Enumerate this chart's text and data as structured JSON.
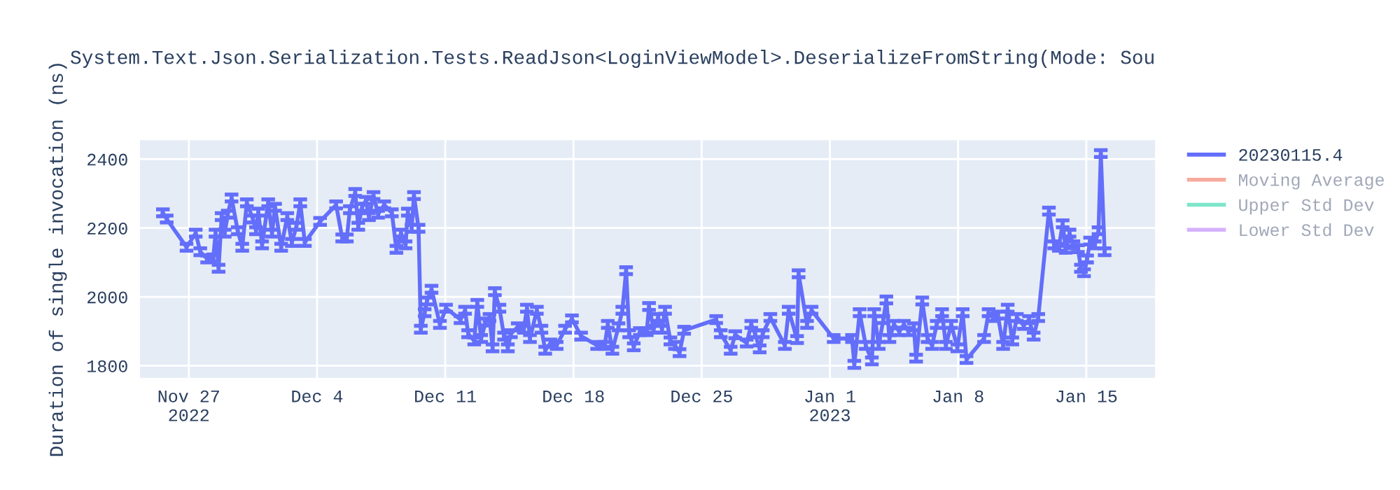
{
  "chart_data": {
    "type": "line",
    "title": "System.Text.Json.Serialization.Tests.ReadJson<LoginViewModel>.DeserializeFromString(Mode: Sou",
    "ylabel": "Duration of single invocation (ns)",
    "x": [
      "2022-11-25T14:00",
      "2022-11-25T19:00",
      "2022-11-26T21:00",
      "2022-11-27T09:00",
      "2022-11-27T15:00",
      "2022-11-28T00:00",
      "2022-11-28T08:00",
      "2022-11-28T11:00",
      "2022-11-28T15:00",
      "2022-11-28T19:00",
      "2022-11-28T23:00",
      "2022-11-29T03:00",
      "2022-11-29T08:00",
      "2022-11-29T16:00",
      "2022-11-29T22:00",
      "2022-11-30T04:00",
      "2022-11-30T12:00",
      "2022-11-30T16:00",
      "2022-11-30T19:00",
      "2022-12-01T00:00",
      "2022-12-01T08:00",
      "2022-12-01T13:00",
      "2022-12-01T17:00",
      "2022-12-02T01:00",
      "2022-12-02T09:00",
      "2022-12-02T15:00",
      "2022-12-02T21:00",
      "2022-12-03T02:00",
      "2022-12-03T08:00",
      "2022-12-04T04:00",
      "2022-12-05T01:00",
      "2022-12-05T09:00",
      "2022-12-05T15:00",
      "2022-12-05T19:00",
      "2022-12-06T02:00",
      "2022-12-06T06:00",
      "2022-12-06T11:00",
      "2022-12-06T16:00",
      "2022-12-06T20:00",
      "2022-12-07T02:00",
      "2022-12-07T08:00",
      "2022-12-07T16:00",
      "2022-12-08T02:00",
      "2022-12-08T08:00",
      "2022-12-08T14:00",
      "2022-12-08T20:00",
      "2022-12-08T23:00",
      "2022-12-09T04:00",
      "2022-12-09T07:00",
      "2022-12-09T13:00",
      "2022-12-09T16:00",
      "2022-12-09T21:00",
      "2022-12-10T00:00",
      "2022-12-10T06:00",
      "2022-12-10T17:00",
      "2022-12-11T01:00",
      "2022-12-11T20:00",
      "2022-12-12T02:00",
      "2022-12-12T06:00",
      "2022-12-12T14:00",
      "2022-12-12T18:00",
      "2022-12-12T23:00",
      "2022-12-13T05:00",
      "2022-12-13T10:00",
      "2022-12-13T14:00",
      "2022-12-13T17:00",
      "2022-12-13T23:00",
      "2022-12-14T05:00",
      "2022-12-14T10:00",
      "2022-12-14T14:00",
      "2022-12-14T23:00",
      "2022-12-15T07:00",
      "2022-12-15T11:00",
      "2022-12-15T15:00",
      "2022-12-16T00:00",
      "2022-12-16T06:00",
      "2022-12-16T11:00",
      "2022-12-16T18:00",
      "2022-12-17T02:00",
      "2022-12-17T13:00",
      "2022-12-17T22:00",
      "2022-12-18T10:00",
      "2022-12-19T07:00",
      "2022-12-19T17:00",
      "2022-12-19T21:00",
      "2022-12-20T03:00",
      "2022-12-20T11:00",
      "2022-12-20T16:00",
      "2022-12-20T21:00",
      "2022-12-21T01:00",
      "2022-12-21T07:00",
      "2022-12-21T15:00",
      "2022-12-22T00:00",
      "2022-12-22T03:00",
      "2022-12-22T09:00",
      "2022-12-22T15:00",
      "2022-12-22T20:00",
      "2022-12-23T00:00",
      "2022-12-23T07:00",
      "2022-12-23T13:00",
      "2022-12-23T19:00",
      "2022-12-24T01:00",
      "2022-12-25T19:00",
      "2022-12-26T01:00",
      "2022-12-26T14:00",
      "2022-12-26T20:00",
      "2022-12-27T11:00",
      "2022-12-27T17:00",
      "2022-12-27T22:00",
      "2022-12-28T04:00",
      "2022-12-28T08:00",
      "2022-12-28T18:00",
      "2022-12-29T13:00",
      "2022-12-29T18:00",
      "2022-12-30T05:00",
      "2022-12-30T07:00",
      "2022-12-30T18:00",
      "2022-12-31T00:00",
      "2023-01-01T05:00",
      "2023-01-02T05:00",
      "2023-01-02T08:00",
      "2023-01-02T15:00",
      "2023-01-02T23:00",
      "2023-01-03T07:00",
      "2023-01-03T10:00",
      "2023-01-03T16:00",
      "2023-01-03T22:00",
      "2023-01-04T02:00",
      "2023-01-04T06:00",
      "2023-01-04T12:00",
      "2023-01-04T19:00",
      "2023-01-05T01:00",
      "2023-01-05T07:00",
      "2023-01-05T14:00",
      "2023-01-05T17:00",
      "2023-01-06T01:00",
      "2023-01-06T08:00",
      "2023-01-06T14:00",
      "2023-01-06T20:00",
      "2023-01-07T03:00",
      "2023-01-07T08:00",
      "2023-01-07T15:00",
      "2023-01-07T23:00",
      "2023-01-08T06:00",
      "2023-01-08T11:00",
      "2023-01-09T10:00",
      "2023-01-09T16:00",
      "2023-01-09T22:00",
      "2023-01-10T04:00",
      "2023-01-10T11:00",
      "2023-01-10T17:00",
      "2023-01-10T23:00",
      "2023-01-11T05:00",
      "2023-01-11T14:00",
      "2023-01-11T21:00",
      "2023-01-12T03:00",
      "2023-01-12T09:00",
      "2023-01-12T23:00",
      "2023-01-13T06:00",
      "2023-01-13T12:00",
      "2023-01-13T17:00",
      "2023-01-13T21:00",
      "2023-01-14T02:00",
      "2023-01-14T07:00",
      "2023-01-14T13:00",
      "2023-01-14T17:00",
      "2023-01-14T21:00",
      "2023-01-15T01:00",
      "2023-01-15T05:00",
      "2023-01-15T11:00",
      "2023-01-15T16:00",
      "2023-01-15T19:00",
      "2023-01-16T00:00"
    ],
    "series": [
      {
        "name": "20230115.4",
        "color": "#636efa",
        "values": [
          2244,
          2226,
          2144,
          2185,
          2131,
          2110,
          2113,
          2185,
          2083,
          2233,
          2185,
          2240,
          2287,
          2192,
          2144,
          2273,
          2226,
          2192,
          2246,
          2151,
          2273,
          2185,
          2260,
          2144,
          2233,
          2158,
          2205,
          2273,
          2158,
          2219,
          2267,
          2171,
          2171,
          2253,
          2303,
          2205,
          2260,
          2280,
          2233,
          2294,
          2240,
          2267,
          2244,
          2138,
          2185,
          2151,
          2246,
          2199,
          2294,
          2199,
          1906,
          1954,
          1988,
          2022,
          1920,
          1967,
          1934,
          1961,
          1893,
          1872,
          1981,
          1879,
          1927,
          1940,
          1852,
          2015,
          1967,
          1886,
          1852,
          1893,
          1913,
          1906,
          1967,
          1879,
          1961,
          1906,
          1845,
          1866,
          1859,
          1906,
          1936,
          1886,
          1859,
          1859,
          1920,
          1845,
          1913,
          1961,
          2076,
          1893,
          1855,
          1899,
          1899,
          1972,
          1906,
          1940,
          1906,
          1961,
          1872,
          1859,
          1838,
          1903,
          1934,
          1893,
          1845,
          1890,
          1866,
          1920,
          1893,
          1849,
          1893,
          1940,
          1859,
          1961,
          1876,
          2067,
          1920,
          1961,
          1879,
          1879,
          1804,
          1954,
          1859,
          1814,
          1954,
          1859,
          1934,
          1991,
          1879,
          1920,
          1899,
          1920,
          1899,
          1913,
          1822,
          1988,
          1879,
          1859,
          1920,
          1954,
          1859,
          1920,
          1852,
          1954,
          1818,
          1879,
          1954,
          1940,
          1947,
          1859,
          1967,
          1872,
          1940,
          1917,
          1934,
          1886,
          1940,
          2249,
          2151,
          2144,
          2212,
          2138,
          2185,
          2151,
          2140,
          2083,
          2070,
          2110,
          2162,
          2151,
          2192,
          2416,
          2131
        ],
        "errors": [
          10,
          10,
          10,
          10,
          10,
          10,
          10,
          10,
          10,
          10,
          10,
          10,
          10,
          10,
          10,
          10,
          10,
          10,
          10,
          10,
          10,
          10,
          10,
          10,
          10,
          10,
          10,
          10,
          10,
          10,
          10,
          10,
          10,
          10,
          10,
          10,
          10,
          10,
          10,
          10,
          10,
          10,
          10,
          10,
          10,
          10,
          10,
          10,
          10,
          10,
          10,
          10,
          10,
          10,
          10,
          10,
          10,
          10,
          10,
          10,
          10,
          10,
          10,
          10,
          10,
          10,
          10,
          10,
          10,
          10,
          10,
          10,
          10,
          10,
          10,
          10,
          10,
          10,
          10,
          10,
          10,
          10,
          10,
          10,
          10,
          10,
          10,
          10,
          10,
          10,
          10,
          10,
          10,
          10,
          10,
          10,
          10,
          10,
          10,
          10,
          10,
          10,
          10,
          10,
          10,
          10,
          10,
          10,
          10,
          10,
          10,
          10,
          10,
          10,
          10,
          10,
          10,
          10,
          10,
          10,
          10,
          10,
          10,
          10,
          10,
          10,
          10,
          10,
          10,
          10,
          10,
          10,
          10,
          10,
          10,
          10,
          10,
          10,
          10,
          10,
          10,
          10,
          10,
          10,
          10,
          10,
          10,
          10,
          10,
          10,
          10,
          10,
          10,
          10,
          10,
          10,
          10,
          10,
          10,
          10,
          10,
          10,
          10,
          10,
          10,
          10,
          10,
          10,
          10,
          10,
          10,
          10,
          10
        ]
      },
      {
        "name": "Moving Average",
        "color": "#ef553b",
        "values": [
          null,
          null,
          null,
          null,
          null,
          null,
          null,
          null,
          null,
          null,
          null,
          null,
          null,
          null,
          null,
          null,
          null,
          null,
          null,
          null,
          null,
          null,
          null,
          null,
          null,
          null,
          null,
          null,
          null,
          null,
          null,
          null,
          null,
          null,
          null,
          null,
          null,
          null,
          null,
          null,
          null,
          null,
          null,
          null,
          null,
          null,
          null,
          null,
          null,
          null,
          null,
          null,
          null,
          null,
          null,
          null,
          null,
          null,
          null,
          null,
          null,
          null,
          null,
          null,
          null,
          null,
          null,
          null,
          null,
          null,
          null,
          null,
          null,
          null,
          null,
          null,
          null,
          null,
          null,
          null,
          null,
          null,
          null,
          null,
          null,
          null,
          null,
          null,
          null,
          null,
          null,
          null,
          null,
          null,
          null,
          null,
          null,
          null,
          null,
          null,
          null,
          null,
          null,
          null,
          null,
          null,
          null,
          null,
          null,
          null,
          null,
          null,
          null,
          null,
          null,
          null,
          null,
          null,
          null,
          null,
          null,
          null,
          null,
          null,
          null,
          null,
          null,
          null,
          null,
          null,
          null,
          null,
          null,
          null,
          null,
          null,
          null,
          null,
          null,
          null,
          null,
          null,
          null,
          null,
          null,
          null,
          null,
          null,
          null,
          null,
          null,
          null,
          null,
          null,
          null,
          null,
          null,
          null,
          null,
          null,
          null,
          null,
          null,
          null,
          null,
          null,
          null,
          null,
          null,
          null,
          null,
          null,
          null
        ]
      },
      {
        "name": "Upper Std Dev",
        "color": "#00cc96",
        "values": [
          null,
          null,
          null,
          null,
          null,
          null,
          null,
          null,
          null,
          null,
          null,
          null,
          null,
          null,
          null,
          null,
          null,
          null,
          null,
          null,
          null,
          null,
          null,
          null,
          null,
          null,
          null,
          null,
          null,
          null,
          null,
          null,
          null,
          null,
          null,
          null,
          null,
          null,
          null,
          null,
          null,
          null,
          null,
          null,
          null,
          null,
          null,
          null,
          null,
          null,
          null,
          null,
          null,
          null,
          null,
          null,
          null,
          null,
          null,
          null,
          null,
          null,
          null,
          null,
          null,
          null,
          null,
          null,
          null,
          null,
          null,
          null,
          null,
          null,
          null,
          null,
          null,
          null,
          null,
          null,
          null,
          null,
          null,
          null,
          null,
          null,
          null,
          null,
          null,
          null,
          null,
          null,
          null,
          null,
          null,
          null,
          null,
          null,
          null,
          null,
          null,
          null,
          null,
          null,
          null,
          null,
          null,
          null,
          null,
          null,
          null,
          null,
          null,
          null,
          null,
          null,
          null,
          null,
          null,
          null,
          null,
          null,
          null,
          null,
          null,
          null,
          null,
          null,
          null,
          null,
          null,
          null,
          null,
          null,
          null,
          null,
          null,
          null,
          null,
          null,
          null,
          null,
          null,
          null,
          null,
          null,
          null,
          null,
          null,
          null,
          null,
          null,
          null,
          null,
          null,
          null,
          null,
          null,
          null,
          null,
          null,
          null,
          null,
          null,
          null,
          null,
          null,
          null,
          null,
          null,
          null,
          null,
          null
        ]
      },
      {
        "name": "Lower Std Dev",
        "color": "#ab63fa",
        "values": [
          null,
          null,
          null,
          null,
          null,
          null,
          null,
          null,
          null,
          null,
          null,
          null,
          null,
          null,
          null,
          null,
          null,
          null,
          null,
          null,
          null,
          null,
          null,
          null,
          null,
          null,
          null,
          null,
          null,
          null,
          null,
          null,
          null,
          null,
          null,
          null,
          null,
          null,
          null,
          null,
          null,
          null,
          null,
          null,
          null,
          null,
          null,
          null,
          null,
          null,
          null,
          null,
          null,
          null,
          null,
          null,
          null,
          null,
          null,
          null,
          null,
          null,
          null,
          null,
          null,
          null,
          null,
          null,
          null,
          null,
          null,
          null,
          null,
          null,
          null,
          null,
          null,
          null,
          null,
          null,
          null,
          null,
          null,
          null,
          null,
          null,
          null,
          null,
          null,
          null,
          null,
          null,
          null,
          null,
          null,
          null,
          null,
          null,
          null,
          null,
          null,
          null,
          null,
          null,
          null,
          null,
          null,
          null,
          null,
          null,
          null,
          null,
          null,
          null,
          null,
          null,
          null,
          null,
          null,
          null,
          null,
          null,
          null,
          null,
          null,
          null,
          null,
          null,
          null,
          null,
          null,
          null,
          null,
          null,
          null,
          null,
          null,
          null,
          null,
          null,
          null,
          null,
          null,
          null,
          null,
          null,
          null,
          null,
          null,
          null,
          null,
          null,
          null,
          null,
          null,
          null,
          null,
          null,
          null,
          null,
          null,
          null,
          null,
          null,
          null,
          null,
          null,
          null,
          null,
          null,
          null,
          null,
          null
        ]
      }
    ],
    "xlim": [
      "2022-11-24T08:00",
      "2023-01-18T18:00"
    ],
    "xticks": [
      {
        "value": "2022-11-27",
        "label": "Nov 27\n2022"
      },
      {
        "value": "2022-12-04",
        "label": "Dec 4"
      },
      {
        "value": "2022-12-11",
        "label": "Dec 11"
      },
      {
        "value": "2022-12-18",
        "label": "Dec 18"
      },
      {
        "value": "2022-12-25",
        "label": "Dec 25"
      },
      {
        "value": "2023-01-01",
        "label": "Jan 1\n2023"
      },
      {
        "value": "2023-01-08",
        "label": "Jan 8"
      },
      {
        "value": "2023-01-15",
        "label": "Jan 15"
      }
    ],
    "ylim": [
      1765,
      2455
    ],
    "yticks": [
      1800,
      2000,
      2200,
      2400
    ],
    "grid": true,
    "legend": "top right",
    "marker": "none",
    "line_style": "solid"
  }
}
